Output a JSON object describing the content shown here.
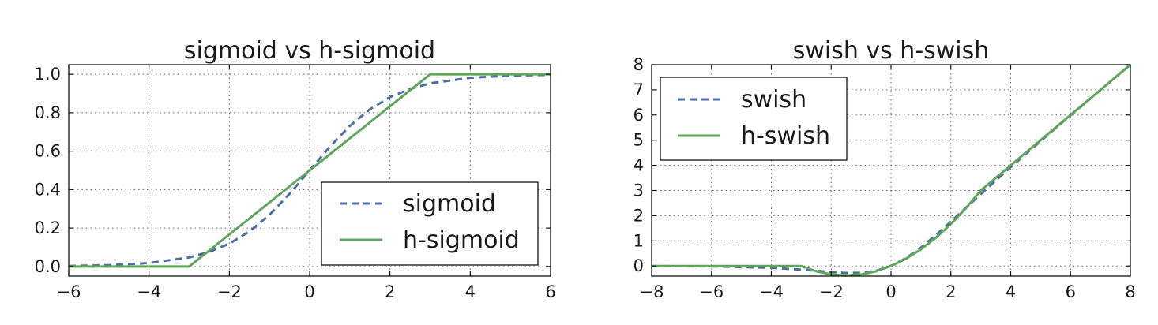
{
  "colors": {
    "sigmoid": "#4c6ea6",
    "hard": "#5fa55a"
  },
  "chart_data": [
    {
      "type": "line",
      "title": "sigmoid vs h-sigmoid",
      "xlim": [
        -6,
        6
      ],
      "ylim": [
        -0.05,
        1.05
      ],
      "xticks": [
        -6,
        -4,
        -2,
        0,
        2,
        4,
        6
      ],
      "xtick_labels": [
        "−6",
        "−4",
        "−2",
        "0",
        "2",
        "4",
        "6"
      ],
      "yticks": [
        0.0,
        0.2,
        0.4,
        0.6,
        0.8,
        1.0
      ],
      "ytick_labels": [
        "0.0",
        "0.2",
        "0.4",
        "0.6",
        "0.8",
        "1.0"
      ],
      "grid": true,
      "legend_position": "lower-right",
      "series": [
        {
          "name": "sigmoid",
          "style": "dashed",
          "x": [
            -6,
            -5,
            -4,
            -3,
            -2.5,
            -2,
            -1.5,
            -1,
            -0.5,
            0,
            0.5,
            1,
            1.5,
            2,
            2.5,
            3,
            4,
            5,
            6
          ],
          "y": [
            0.0025,
            0.0067,
            0.018,
            0.047,
            0.076,
            0.119,
            0.182,
            0.269,
            0.378,
            0.5,
            0.622,
            0.731,
            0.818,
            0.881,
            0.924,
            0.953,
            0.982,
            0.993,
            0.9975
          ]
        },
        {
          "name": "h-sigmoid",
          "style": "solid",
          "x": [
            -6,
            -3,
            3,
            6
          ],
          "y": [
            0,
            0,
            1,
            1
          ]
        }
      ]
    },
    {
      "type": "line",
      "title": "swish vs h-swish",
      "xlim": [
        -8,
        8
      ],
      "ylim": [
        -0.4,
        8.0
      ],
      "xticks": [
        -8,
        -6,
        -4,
        -2,
        0,
        2,
        4,
        6,
        8
      ],
      "xtick_labels": [
        "−8",
        "−6",
        "−4",
        "−2",
        "0",
        "2",
        "4",
        "6",
        "8"
      ],
      "yticks": [
        0,
        1,
        2,
        3,
        4,
        5,
        6,
        7,
        8
      ],
      "ytick_labels": [
        "0",
        "1",
        "2",
        "3",
        "4",
        "5",
        "6",
        "7",
        "8"
      ],
      "grid": true,
      "legend_position": "upper-left",
      "series": [
        {
          "name": "swish",
          "style": "dashed",
          "x": [
            -8,
            -6,
            -4,
            -3,
            -2,
            -1.5,
            -1,
            -0.5,
            0,
            0.5,
            1,
            1.5,
            2,
            3,
            4,
            5,
            6,
            7,
            8
          ],
          "y": [
            -0.003,
            -0.015,
            -0.072,
            -0.142,
            -0.238,
            -0.274,
            -0.269,
            -0.189,
            0,
            0.311,
            0.731,
            1.227,
            1.762,
            2.858,
            3.928,
            4.967,
            5.985,
            6.994,
            7.997
          ]
        },
        {
          "name": "h-swish",
          "style": "solid",
          "x": [
            -8,
            -3,
            -2.5,
            -2,
            -1.5,
            -1,
            -0.5,
            0,
            0.5,
            1,
            1.5,
            2,
            2.5,
            3,
            8
          ],
          "y": [
            0,
            0,
            -0.208,
            -0.333,
            -0.375,
            -0.333,
            -0.208,
            0,
            0.292,
            0.667,
            1.125,
            1.667,
            2.292,
            3,
            8
          ]
        }
      ]
    }
  ]
}
